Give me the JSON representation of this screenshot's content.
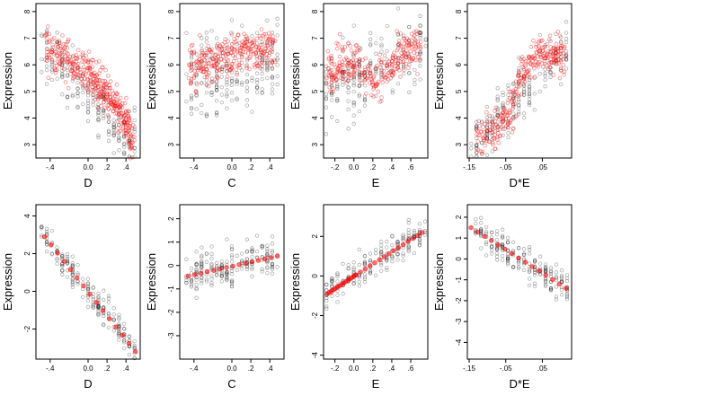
{
  "chart_data": [
    {
      "type": "scatter",
      "panel": "raw-D",
      "xlabel": "D",
      "ylabel": "Expression",
      "xlim": [
        -0.55,
        0.55
      ],
      "ylim": [
        2.5,
        8.3
      ],
      "xticks": [
        -0.4,
        0.0,
        0.2,
        0.4
      ],
      "yticks": [
        3,
        4,
        5,
        6,
        7,
        8
      ],
      "trend": {
        "x": [
          -0.45,
          -0.3,
          -0.15,
          0,
          0.1,
          0.2,
          0.3,
          0.4,
          0.47
        ],
        "y": [
          6.7,
          6.4,
          6.0,
          5.7,
          5.3,
          4.9,
          4.3,
          3.8,
          3.1
        ]
      },
      "cloud": {
        "xmin": -0.48,
        "xmax": 0.5,
        "y_at_min": 6.6,
        "y_at_max": 3.1,
        "spread": 1.3,
        "n": 220
      }
    },
    {
      "type": "scatter",
      "panel": "raw-C",
      "xlabel": "C",
      "ylabel": "Expression",
      "xlim": [
        -0.55,
        0.55
      ],
      "ylim": [
        2.5,
        8.3
      ],
      "xticks": [
        -0.4,
        0.0,
        0.2,
        0.4
      ],
      "yticks": [
        3,
        4,
        5,
        6,
        7,
        8
      ],
      "trend": {
        "x": [
          -0.45,
          -0.3,
          -0.15,
          0,
          0.15,
          0.3,
          0.45
        ],
        "y": [
          5.9,
          6.05,
          6.2,
          6.35,
          6.5,
          6.6,
          6.7
        ]
      },
      "cloud": {
        "xmin": -0.48,
        "xmax": 0.48,
        "y_at_min": 5.3,
        "y_at_max": 6.3,
        "spread": 1.8,
        "n": 220
      }
    },
    {
      "type": "scatter",
      "panel": "raw-E",
      "xlabel": "E",
      "ylabel": "Expression",
      "xlim": [
        -0.32,
        0.78
      ],
      "ylim": [
        2.5,
        8.3
      ],
      "xticks": [
        -0.2,
        0.0,
        0.2,
        0.4,
        0.6
      ],
      "yticks": [
        3,
        4,
        5,
        6,
        7,
        8
      ],
      "trend": {
        "x": [
          -0.28,
          -0.15,
          0,
          0.2,
          0.4,
          0.55,
          0.7
        ],
        "y": [
          5.8,
          6.0,
          6.2,
          5.4,
          5.9,
          6.4,
          6.6
        ]
      },
      "cloud": {
        "xmin": -0.3,
        "xmax": 0.75,
        "y_at_min": 5.0,
        "y_at_max": 6.7,
        "spread": 1.6,
        "n": 220
      }
    },
    {
      "type": "scatter",
      "panel": "raw-DxE",
      "xlabel": "D*E",
      "ylabel": "Expression",
      "xlim": [
        -0.155,
        0.13
      ],
      "ylim": [
        2.5,
        8.3
      ],
      "xticks": [
        -0.15,
        -0.05,
        0.05
      ],
      "yticks": [
        3,
        4,
        5,
        6,
        7,
        8
      ],
      "trend": {
        "x": [
          -0.13,
          -0.08,
          -0.04,
          0,
          0.04,
          0.08,
          0.11
        ],
        "y": [
          3.1,
          3.6,
          4.1,
          5.8,
          6.4,
          6.5,
          6.4
        ]
      },
      "cloud": {
        "xmin": -0.14,
        "xmax": 0.12,
        "y_at_min": 3.0,
        "y_at_max": 6.8,
        "spread": 1.2,
        "n": 220
      }
    },
    {
      "type": "scatter",
      "panel": "partial-D",
      "xlabel": "D",
      "ylabel": "Expression",
      "xlim": [
        -0.55,
        0.55
      ],
      "ylim": [
        -3.6,
        4.6
      ],
      "xticks": [
        -0.4,
        0.0,
        0.2,
        0.4
      ],
      "yticks": [
        -2,
        0,
        2,
        4
      ],
      "trend": {
        "x": [
          -0.46,
          0.5
        ],
        "y": [
          2.9,
          -3.2
        ]
      },
      "cloud": {
        "xmin": -0.48,
        "xmax": 0.5,
        "y_at_min": 3.0,
        "y_at_max": -3.1,
        "spread": 0.9,
        "n": 200
      }
    },
    {
      "type": "scatter",
      "panel": "partial-C",
      "xlabel": "C",
      "ylabel": "Expression",
      "xlim": [
        -0.55,
        0.55
      ],
      "ylim": [
        -4.0,
        2.6
      ],
      "xticks": [
        -0.4,
        0.0,
        0.2,
        0.4
      ],
      "yticks": [
        -3,
        -2,
        -1,
        0,
        1,
        2
      ],
      "trend": {
        "x": [
          -0.46,
          0.48
        ],
        "y": [
          -0.45,
          0.4
        ]
      },
      "cloud": {
        "xmin": -0.48,
        "xmax": 0.48,
        "y_at_min": -0.4,
        "y_at_max": 0.4,
        "spread": 1.1,
        "n": 200
      }
    },
    {
      "type": "scatter",
      "panel": "partial-E",
      "xlabel": "E",
      "ylabel": "Expression",
      "xlim": [
        -0.32,
        0.78
      ],
      "ylim": [
        -4.2,
        3.6
      ],
      "xticks": [
        -0.2,
        0.0,
        0.2,
        0.4,
        0.6
      ],
      "yticks": [
        -4,
        -2,
        0,
        2
      ],
      "trend": {
        "x": [
          -0.28,
          0.02,
          0.72
        ],
        "y": [
          -0.9,
          0.05,
          2.2
        ]
      },
      "cloud": {
        "xmin": -0.3,
        "xmax": 0.74,
        "y_at_min": -0.9,
        "y_at_max": 2.3,
        "spread": 0.9,
        "n": 200
      }
    },
    {
      "type": "scatter",
      "panel": "partial-DxE",
      "xlabel": "D*E",
      "ylabel": "Expression",
      "xlim": [
        -0.155,
        0.13
      ],
      "ylim": [
        -4.8,
        2.6
      ],
      "xticks": [
        -0.15,
        -0.05,
        0.05
      ],
      "yticks": [
        -4,
        -3,
        -2,
        -1,
        0,
        1,
        2
      ],
      "trend": {
        "x": [
          -0.145,
          0.115
        ],
        "y": [
          1.5,
          -1.4
        ]
      },
      "cloud": {
        "xmin": -0.145,
        "xmax": 0.12,
        "y_at_min": 1.5,
        "y_at_max": -1.4,
        "spread": 0.9,
        "n": 200
      }
    }
  ]
}
